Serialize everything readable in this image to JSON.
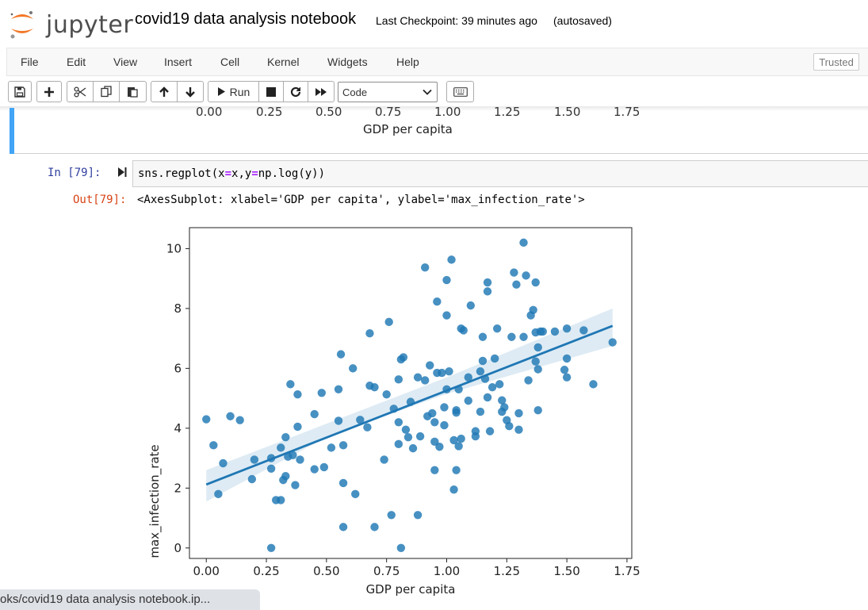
{
  "header": {
    "logo_text": "jupyter",
    "notebook_title": "covid19 data analysis notebook",
    "checkpoint": "Last Checkpoint: 39 minutes ago",
    "autosave": "(autosaved)"
  },
  "menu": [
    "File",
    "Edit",
    "View",
    "Insert",
    "Cell",
    "Kernel",
    "Widgets",
    "Help"
  ],
  "trusted": "Trusted",
  "toolbar": {
    "run_label": "Run",
    "cell_type": "Code",
    "icons": [
      "save-icon",
      "plus-icon",
      "cut-icon",
      "copy-icon",
      "paste-icon",
      "arrow-up-icon",
      "arrow-down-icon",
      "run-icon",
      "stop-icon",
      "restart-icon",
      "fast-forward-icon",
      "keyboard-icon"
    ]
  },
  "previous_output": {
    "xticks": [
      "0.00",
      "0.25",
      "0.50",
      "0.75",
      "1.00",
      "1.25",
      "1.50",
      "1.75"
    ],
    "xlabel": "GDP per capita"
  },
  "cell": {
    "in_prompt": "In [79]:",
    "code_parts": [
      "sns.regplot(x",
      "=",
      "x,y",
      "=",
      "np.log(y))"
    ],
    "out_prompt": "Out[79]:",
    "output_text": "<AxesSubplot: xlabel='GDP per capita', ylabel='max_infection_rate'>"
  },
  "status_url": "oks/covid19 data analysis notebook.ip...",
  "colors": {
    "point": "#1f77b4",
    "band": "#1f77b4",
    "accent": "#42a5f5",
    "in_prompt": "#303f9f",
    "out_prompt": "#d84315"
  },
  "chart_data": {
    "type": "scatter",
    "title": "",
    "xlabel": "GDP per capita",
    "ylabel": "max_infection_rate",
    "xlim": [
      -0.07,
      1.77
    ],
    "ylim": [
      -0.35,
      10.7
    ],
    "xticks": [
      0.0,
      0.25,
      0.5,
      0.75,
      1.0,
      1.25,
      1.5,
      1.75
    ],
    "yticks": [
      0,
      2,
      4,
      6,
      8,
      10
    ],
    "regression_line": {
      "x": [
        0.0,
        1.69
      ],
      "y": [
        2.12,
        7.42
      ]
    },
    "confidence_band": {
      "x": [
        0.0,
        0.5,
        1.0,
        1.69
      ],
      "upper": [
        2.6,
        4.15,
        5.7,
        8.0
      ],
      "lower": [
        1.55,
        3.7,
        5.15,
        6.75
      ]
    },
    "points": [
      [
        0.0,
        4.3
      ],
      [
        0.03,
        3.43
      ],
      [
        0.05,
        1.8
      ],
      [
        0.07,
        2.83
      ],
      [
        0.1,
        4.4
      ],
      [
        0.14,
        4.27
      ],
      [
        0.19,
        2.3
      ],
      [
        0.2,
        2.95
      ],
      [
        0.27,
        3.0
      ],
      [
        0.27,
        2.65
      ],
      [
        0.27,
        0.0
      ],
      [
        0.29,
        1.6
      ],
      [
        0.31,
        1.6
      ],
      [
        0.31,
        3.35
      ],
      [
        0.32,
        2.27
      ],
      [
        0.33,
        3.7
      ],
      [
        0.33,
        2.4
      ],
      [
        0.34,
        3.05
      ],
      [
        0.35,
        5.47
      ],
      [
        0.36,
        3.1
      ],
      [
        0.37,
        2.1
      ],
      [
        0.38,
        5.13
      ],
      [
        0.38,
        4.05
      ],
      [
        0.39,
        2.95
      ],
      [
        0.45,
        2.63
      ],
      [
        0.45,
        4.47
      ],
      [
        0.48,
        5.18
      ],
      [
        0.49,
        2.7
      ],
      [
        0.52,
        3.35
      ],
      [
        0.55,
        5.3
      ],
      [
        0.55,
        4.25
      ],
      [
        0.56,
        6.47
      ],
      [
        0.57,
        3.43
      ],
      [
        0.57,
        2.17
      ],
      [
        0.57,
        0.7
      ],
      [
        0.61,
        6.0
      ],
      [
        0.62,
        1.8
      ],
      [
        0.64,
        4.28
      ],
      [
        0.67,
        4.03
      ],
      [
        0.68,
        5.42
      ],
      [
        0.68,
        7.17
      ],
      [
        0.7,
        5.37
      ],
      [
        0.7,
        0.7
      ],
      [
        0.74,
        2.95
      ],
      [
        0.75,
        5.13
      ],
      [
        0.76,
        7.55
      ],
      [
        0.77,
        1.1
      ],
      [
        0.78,
        4.65
      ],
      [
        0.8,
        3.47
      ],
      [
        0.8,
        4.2
      ],
      [
        0.8,
        5.63
      ],
      [
        0.81,
        6.3
      ],
      [
        0.81,
        0.0
      ],
      [
        0.82,
        6.37
      ],
      [
        0.83,
        3.95
      ],
      [
        0.84,
        3.7
      ],
      [
        0.85,
        4.88
      ],
      [
        0.86,
        3.33
      ],
      [
        0.88,
        1.1
      ],
      [
        0.88,
        5.7
      ],
      [
        0.89,
        3.73
      ],
      [
        0.91,
        5.6
      ],
      [
        0.91,
        9.37
      ],
      [
        0.92,
        4.4
      ],
      [
        0.93,
        6.1
      ],
      [
        0.94,
        4.5
      ],
      [
        0.95,
        3.55
      ],
      [
        0.95,
        2.6
      ],
      [
        0.95,
        4.2
      ],
      [
        0.96,
        5.85
      ],
      [
        0.96,
        8.23
      ],
      [
        0.97,
        3.38
      ],
      [
        0.98,
        5.85
      ],
      [
        0.99,
        4.1
      ],
      [
        0.99,
        4.7
      ],
      [
        1.0,
        5.3
      ],
      [
        1.0,
        7.77
      ],
      [
        1.0,
        8.95
      ],
      [
        1.01,
        5.9
      ],
      [
        1.02,
        9.63
      ],
      [
        1.03,
        3.6
      ],
      [
        1.03,
        1.95
      ],
      [
        1.04,
        4.52
      ],
      [
        1.04,
        2.6
      ],
      [
        1.04,
        4.6
      ],
      [
        1.05,
        5.3
      ],
      [
        1.05,
        3.4
      ],
      [
        1.06,
        3.65
      ],
      [
        1.06,
        7.33
      ],
      [
        1.07,
        7.27
      ],
      [
        1.09,
        4.92
      ],
      [
        1.09,
        5.7
      ],
      [
        1.1,
        8.1
      ],
      [
        1.12,
        3.73
      ],
      [
        1.12,
        3.9
      ],
      [
        1.14,
        5.9
      ],
      [
        1.14,
        4.55
      ],
      [
        1.15,
        6.25
      ],
      [
        1.15,
        7.05
      ],
      [
        1.16,
        5.65
      ],
      [
        1.17,
        8.57
      ],
      [
        1.17,
        8.87
      ],
      [
        1.17,
        5.03
      ],
      [
        1.18,
        3.9
      ],
      [
        1.19,
        5.37
      ],
      [
        1.2,
        6.33
      ],
      [
        1.21,
        7.33
      ],
      [
        1.22,
        5.47
      ],
      [
        1.23,
        4.93
      ],
      [
        1.23,
        4.55
      ],
      [
        1.24,
        4.7
      ],
      [
        1.25,
        4.27
      ],
      [
        1.26,
        4.07
      ],
      [
        1.27,
        7.05
      ],
      [
        1.28,
        9.2
      ],
      [
        1.29,
        8.8
      ],
      [
        1.3,
        3.95
      ],
      [
        1.3,
        4.5
      ],
      [
        1.32,
        10.2
      ],
      [
        1.32,
        7.05
      ],
      [
        1.33,
        9.1
      ],
      [
        1.34,
        5.6
      ],
      [
        1.35,
        7.77
      ],
      [
        1.36,
        7.95
      ],
      [
        1.37,
        8.87
      ],
      [
        1.37,
        6.23
      ],
      [
        1.37,
        7.2
      ],
      [
        1.38,
        4.6
      ],
      [
        1.38,
        5.97
      ],
      [
        1.38,
        6.7
      ],
      [
        1.39,
        7.23
      ],
      [
        1.4,
        7.23
      ],
      [
        1.45,
        7.23
      ],
      [
        1.49,
        5.95
      ],
      [
        1.5,
        7.33
      ],
      [
        1.5,
        5.7
      ],
      [
        1.5,
        6.33
      ],
      [
        1.57,
        7.27
      ],
      [
        1.61,
        5.47
      ],
      [
        1.69,
        6.87
      ]
    ]
  }
}
